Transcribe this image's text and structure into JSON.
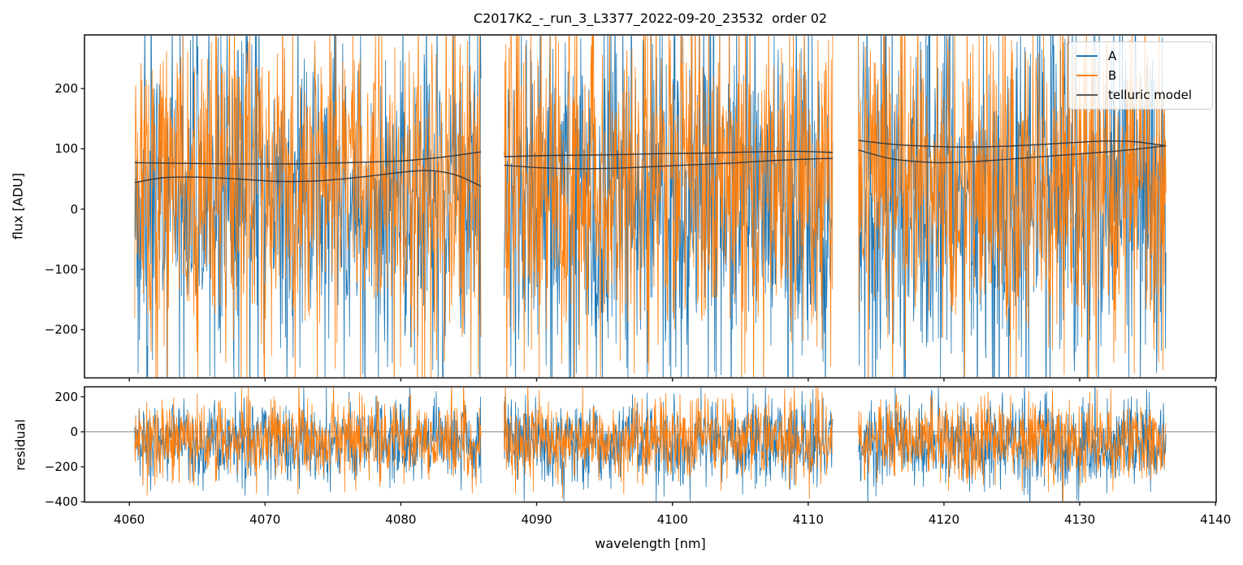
{
  "title": "C2017K2_-_run_3_L3377_2022-09-20_23532  order 02",
  "axes": {
    "xlabel": "wavelength [nm]",
    "flux_ylabel": "flux [ADU]",
    "residual_ylabel": "residual"
  },
  "legend": {
    "entries": [
      {
        "label": "A",
        "color": "#1f77b4"
      },
      {
        "label": "B",
        "color": "#ff7f0e"
      },
      {
        "label": "telluric model",
        "color": "#595959"
      }
    ]
  },
  "chart_data": {
    "type": "line",
    "title": "C2017K2_-_run_3_L3377_2022-09-20_23532  order 02",
    "xlabel": "wavelength [nm]",
    "ylabel_top": "flux [ADU]",
    "ylabel_bottom": "residual",
    "xlim": [
      4056.7,
      4140.05
    ],
    "flux_ylim": [
      -280,
      289
    ],
    "residual_ylim": [
      -402,
      257
    ],
    "x_ticks": [
      4060,
      4070,
      4080,
      4090,
      4100,
      4110,
      4120,
      4130,
      4140
    ],
    "flux_ticks": [
      200,
      100,
      0,
      -100,
      -200
    ],
    "residual_ticks": [
      200,
      0,
      -200,
      -400
    ],
    "grid": false,
    "legend_position": "upper right",
    "colors": {
      "series_A": "#1f77b4",
      "series_B": "#ff7f0e",
      "telluric_model": "#3a3a3a",
      "zero_line": "#808080",
      "spine": "#1c1c1c"
    },
    "segments": [
      {
        "x_start": 4060.4,
        "x_end": 4085.9
      },
      {
        "x_start": 4087.6,
        "x_end": 4111.8
      },
      {
        "x_start": 4113.7,
        "x_end": 4136.35
      }
    ],
    "noise_series": [
      {
        "name": "A",
        "color": "#1f77b4",
        "flux_mean": 20,
        "flux_std": 152,
        "residual_mean": -60,
        "residual_std": 124
      },
      {
        "name": "B",
        "color": "#ff7f0e",
        "flux_mean": 45,
        "flux_std": 140,
        "residual_mean": -45,
        "residual_std": 116
      }
    ],
    "telluric_model_curves": [
      {
        "segment": 0,
        "points": [
          [
            4060.4,
            77
          ],
          [
            4064,
            76
          ],
          [
            4068,
            75
          ],
          [
            4072,
            75
          ],
          [
            4076,
            77
          ],
          [
            4080,
            80
          ],
          [
            4083,
            86
          ],
          [
            4085.9,
            95
          ]
        ]
      },
      {
        "segment": 0,
        "points": [
          [
            4060.4,
            44
          ],
          [
            4062.5,
            52
          ],
          [
            4065,
            53
          ],
          [
            4068,
            50
          ],
          [
            4071,
            46
          ],
          [
            4074,
            47
          ],
          [
            4077,
            53
          ],
          [
            4080,
            61
          ],
          [
            4082,
            64
          ],
          [
            4084,
            57
          ],
          [
            4085.9,
            38
          ]
        ]
      },
      {
        "segment": 1,
        "points": [
          [
            4087.6,
            87
          ],
          [
            4091,
            89
          ],
          [
            4095,
            90
          ],
          [
            4099,
            92
          ],
          [
            4103,
            93
          ],
          [
            4106,
            95
          ],
          [
            4109,
            96
          ],
          [
            4111.8,
            94
          ]
        ]
      },
      {
        "segment": 1,
        "points": [
          [
            4087.6,
            73
          ],
          [
            4090,
            69
          ],
          [
            4093,
            67
          ],
          [
            4096,
            68
          ],
          [
            4100,
            72
          ],
          [
            4104,
            76
          ],
          [
            4107,
            80
          ],
          [
            4110,
            83
          ],
          [
            4111.8,
            84
          ]
        ]
      },
      {
        "segment": 2,
        "points": [
          [
            4113.7,
            114
          ],
          [
            4116,
            108
          ],
          [
            4118,
            105
          ],
          [
            4121,
            103
          ],
          [
            4124,
            104
          ],
          [
            4127,
            107
          ],
          [
            4130,
            111
          ],
          [
            4132,
            113
          ],
          [
            4134,
            112
          ],
          [
            4136.35,
            105
          ]
        ]
      },
      {
        "segment": 2,
        "points": [
          [
            4113.7,
            98
          ],
          [
            4116,
            84
          ],
          [
            4118,
            79
          ],
          [
            4120,
            77
          ],
          [
            4123,
            80
          ],
          [
            4126,
            85
          ],
          [
            4129,
            90
          ],
          [
            4132,
            95
          ],
          [
            4134,
            99
          ],
          [
            4136.35,
            105
          ]
        ]
      }
    ],
    "residual_zero_line": 0,
    "noise_points_per_segment": 720,
    "seed": 1234
  }
}
